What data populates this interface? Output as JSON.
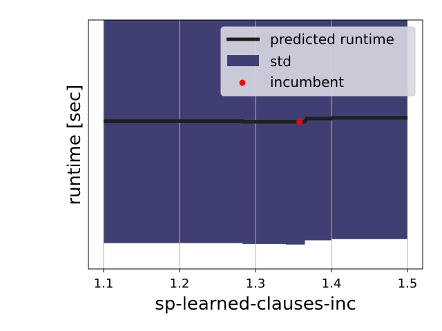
{
  "chart_data": {
    "type": "line",
    "xlabel": "sp-learned-clauses-inc",
    "ylabel": "runtime [sec]",
    "xlim": [
      1.08,
      1.52
    ],
    "ylim": [
      0,
      1
    ],
    "xticks": [
      1.1,
      1.2,
      1.3,
      1.4,
      1.5
    ],
    "xtick_labels": [
      "1.1",
      "1.2",
      "1.3",
      "1.4",
      "1.5"
    ],
    "yticks_shown": false,
    "grid": "x-only",
    "legend_position": "upper right",
    "colors": {
      "mean": "#1f1f1f",
      "std": "#3f3f74",
      "incumbent": "#ff0000",
      "grid": "#b0b0b0",
      "legend_bg": "#d8d8e2"
    },
    "series": [
      {
        "name": "predicted runtime",
        "kind": "line",
        "x": [
          1.1,
          1.283,
          1.283,
          1.365,
          1.367,
          1.4,
          1.401,
          1.5
        ],
        "y": [
          0.594,
          0.594,
          0.591,
          0.591,
          0.604,
          0.604,
          0.607,
          0.607
        ]
      },
      {
        "name": "std",
        "kind": "band",
        "x": [
          1.1,
          1.283,
          1.283,
          1.34,
          1.34,
          1.365,
          1.365,
          1.4,
          1.4,
          1.5
        ],
        "upper": [
          1.0,
          1.0,
          1.0,
          1.0,
          1.0,
          1.0,
          1.0,
          1.0,
          1.0,
          1.0
        ],
        "lower": [
          0.104,
          0.104,
          0.1,
          0.1,
          0.098,
          0.098,
          0.115,
          0.115,
          0.12,
          0.12
        ]
      },
      {
        "name": "incumbent",
        "kind": "scatter",
        "x": [
          1.358
        ],
        "y": [
          0.591
        ]
      }
    ]
  }
}
